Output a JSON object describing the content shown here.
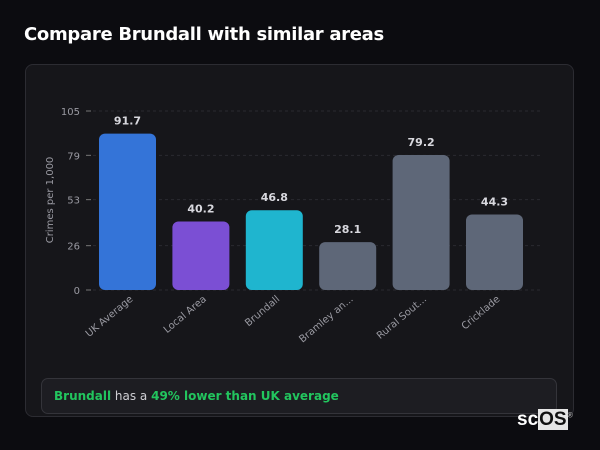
{
  "header": {
    "title": "Compare Brundall with similar areas"
  },
  "chart_data": {
    "type": "bar",
    "ylabel": "Crimes per 1,000",
    "ylim": [
      0,
      105
    ],
    "yticks": [
      0,
      26,
      53,
      79,
      105
    ],
    "grid": true,
    "categories": [
      "UK Average",
      "Local Area",
      "Brundall",
      "Bramley an...",
      "Rural Sout...",
      "Cricklade"
    ],
    "values": [
      91.7,
      40.2,
      46.8,
      28.1,
      79.2,
      44.3
    ],
    "value_labels": [
      "91.7",
      "40.2",
      "46.8",
      "28.1",
      "79.2",
      "44.3"
    ],
    "colors": [
      "#3474d8",
      "#7b4fd4",
      "#1fb5cf",
      "#5e6778",
      "#5e6778",
      "#5e6778"
    ]
  },
  "footer": {
    "area": "Brundall",
    "text_mid": " has a ",
    "highlight": "49% lower than UK average"
  },
  "logo": {
    "text": "scOS"
  }
}
